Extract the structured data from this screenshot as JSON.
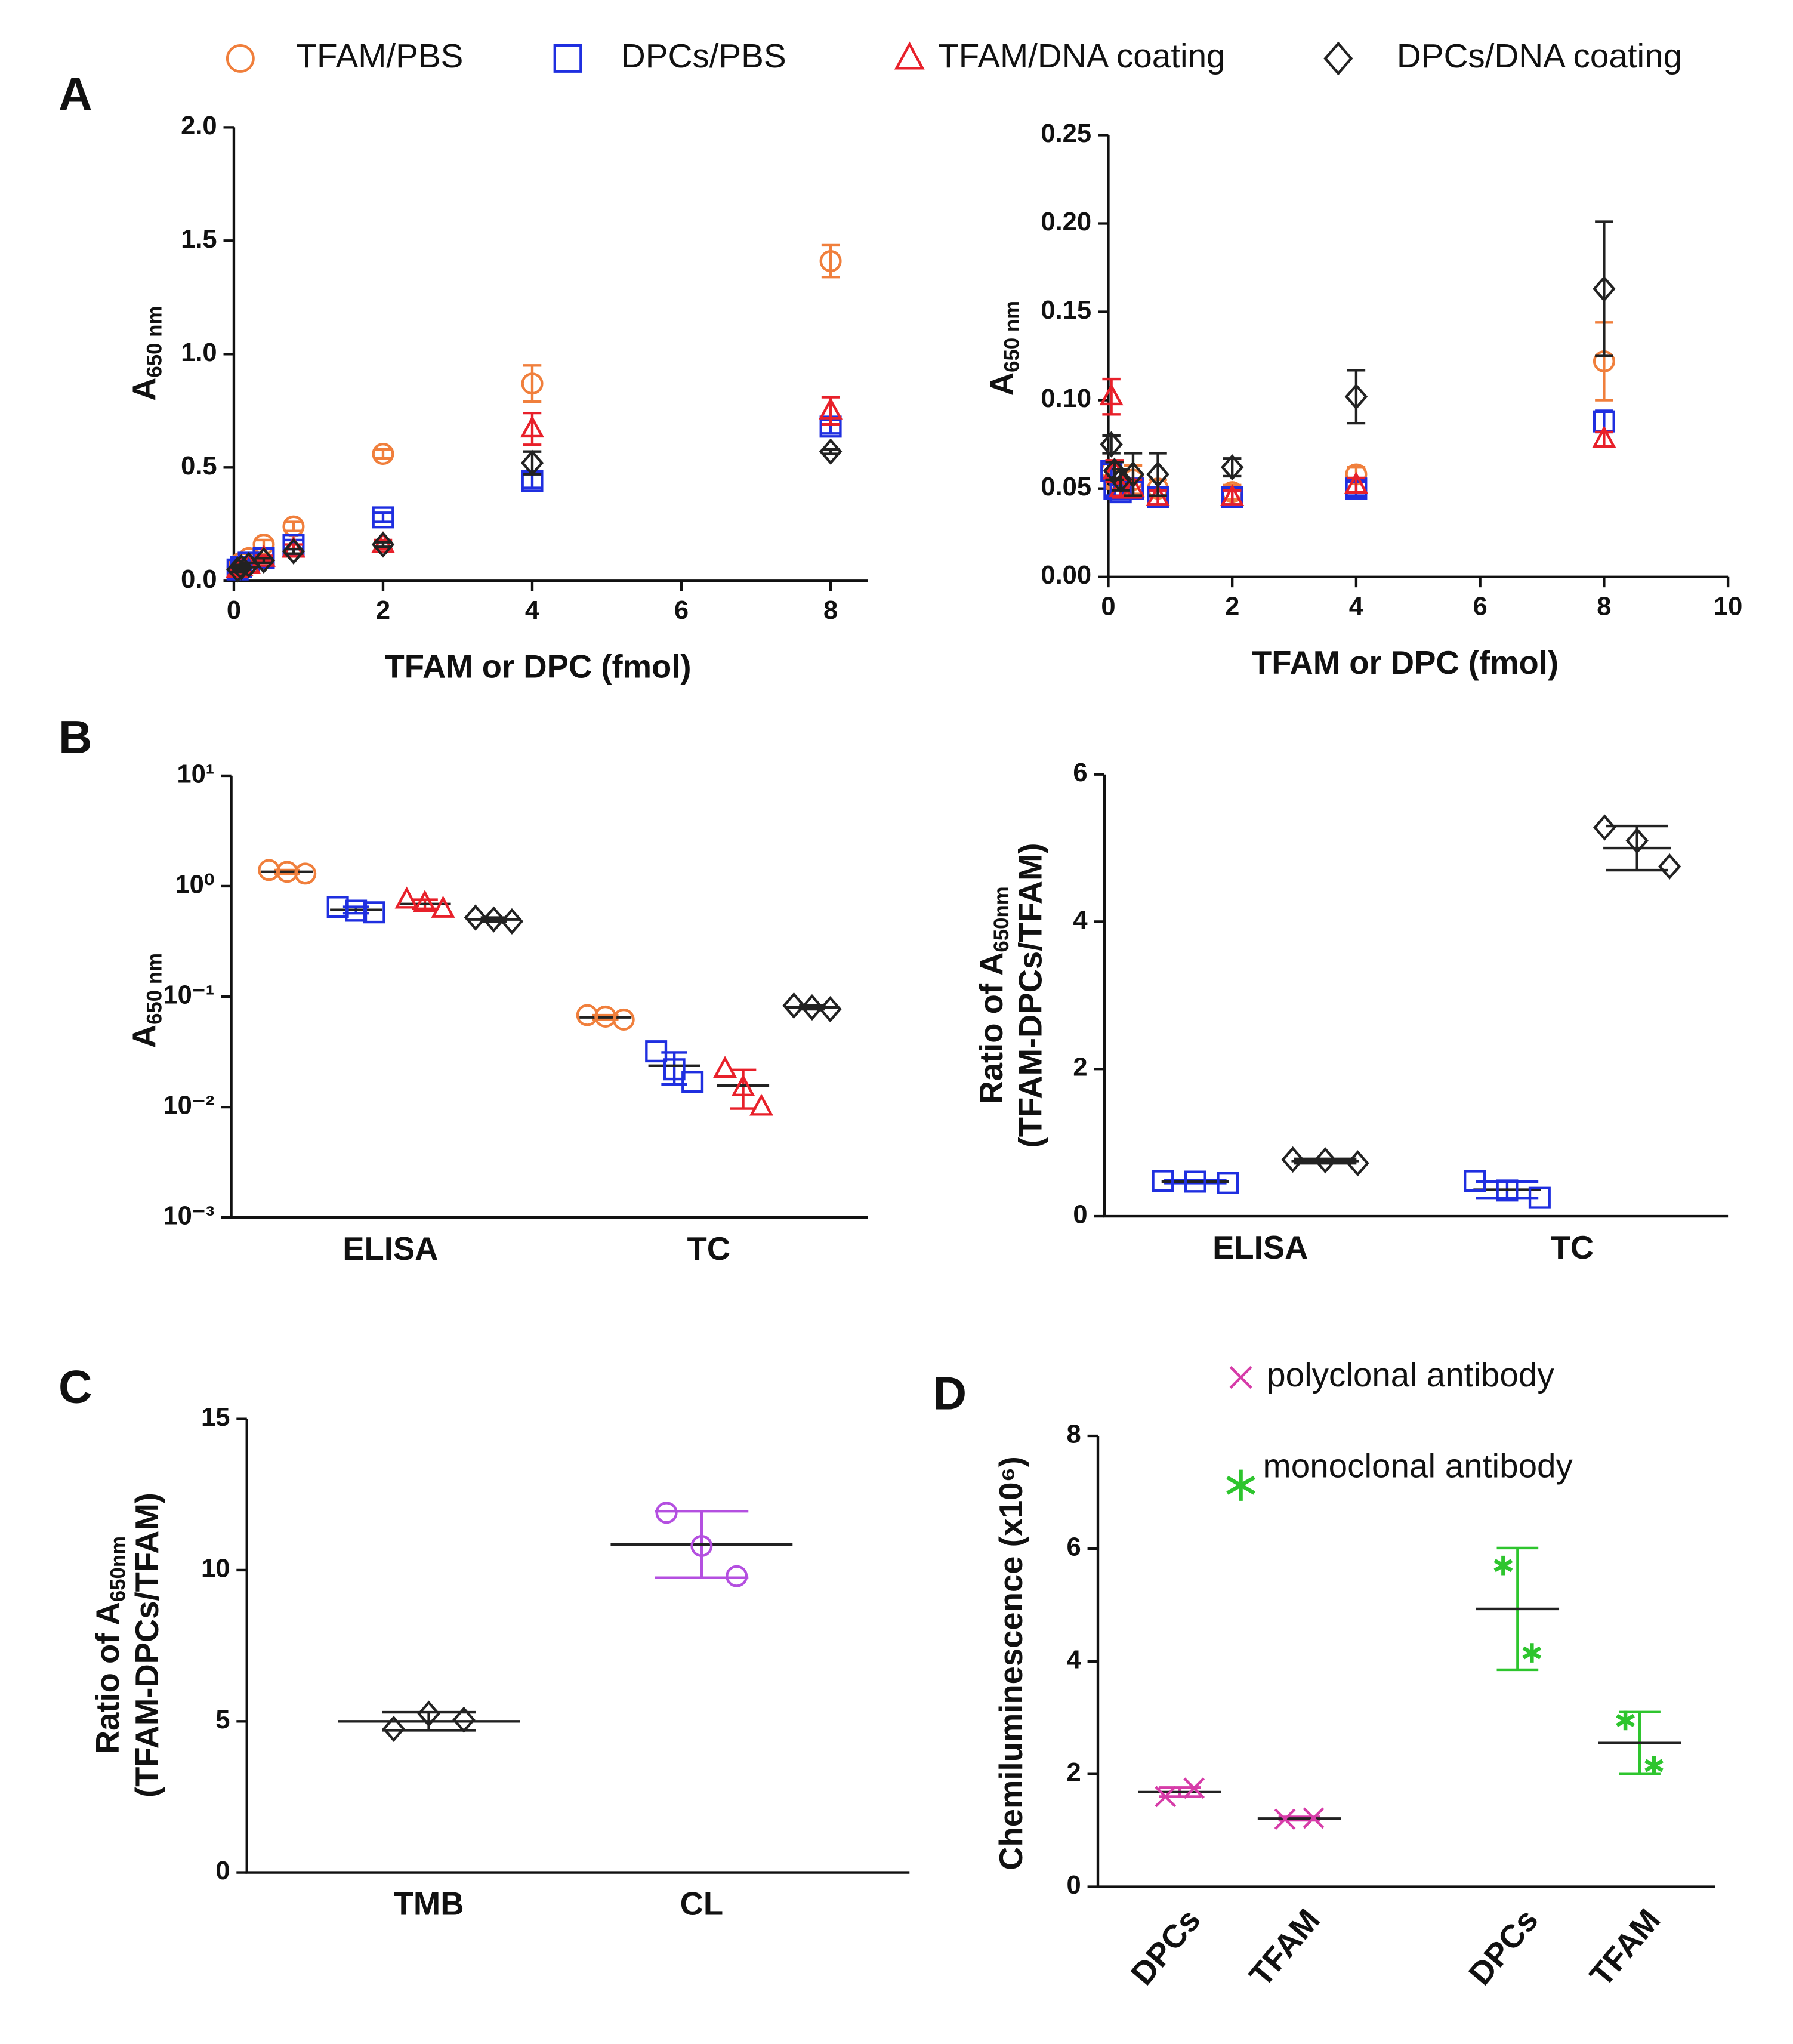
{
  "panels": [
    "A",
    "B",
    "C",
    "D"
  ],
  "chart_data": [
    {
      "type": "scatter",
      "x": [
        0.05,
        0.1,
        0.2,
        0.4,
        0.8,
        2,
        4,
        8
      ],
      "xlim": [
        0,
        8.5
      ],
      "xticks": [
        0,
        2,
        4,
        6,
        8
      ],
      "ylim": [
        0,
        2
      ],
      "yticks": [
        {
          "value": 0,
          "label": "0.0"
        },
        0.5,
        {
          "value": 1,
          "label": "1.0"
        },
        1.5,
        {
          "value": 2,
          "label": "2.0"
        }
      ],
      "xlabel": "TFAM or DPC (fmol)",
      "ylabel": {
        "text": "A",
        "sub": "650 nm"
      },
      "series": [
        {
          "name": "TFAM/PBS",
          "color": "#f07f3c",
          "marker": "circle",
          "values": [
            0.06,
            0.08,
            0.1,
            0.16,
            0.24,
            0.56,
            0.87,
            1.41
          ],
          "errors": [
            0.01,
            0.01,
            0.02,
            0.02,
            0.02,
            0.02,
            0.08,
            0.07
          ]
        },
        {
          "name": "DPCs/PBS",
          "color": "#1f2fe0",
          "marker": "square",
          "values": [
            0.05,
            0.06,
            0.08,
            0.1,
            0.16,
            0.28,
            0.44,
            0.68
          ],
          "errors": [
            0.01,
            0.01,
            0.01,
            0.01,
            0.02,
            0.02,
            0.03,
            0.03
          ]
        },
        {
          "name": "TFAM/DNA coating",
          "color": "#e8202a",
          "marker": "triangle",
          "values": [
            0.05,
            0.06,
            0.07,
            0.1,
            0.14,
            0.16,
            0.67,
            0.75
          ],
          "errors": [
            0.01,
            0.01,
            0.01,
            0.01,
            0.02,
            0.02,
            0.07,
            0.06
          ]
        },
        {
          "name": "DPCs/DNA coating",
          "color": "#222222",
          "marker": "diamond",
          "values": [
            0.05,
            0.06,
            0.07,
            0.09,
            0.13,
            0.16,
            0.52,
            0.57
          ],
          "errors": [
            0.01,
            0.01,
            0.01,
            0.01,
            0.01,
            0.01,
            0.05,
            0.01
          ]
        }
      ]
    },
    {
      "type": "scatter",
      "x": [
        0.05,
        0.1,
        0.2,
        0.4,
        0.8,
        2,
        4,
        8
      ],
      "xlim": [
        0,
        10
      ],
      "xticks": [
        0,
        2,
        4,
        6,
        8,
        10
      ],
      "ylim": [
        0,
        0.25
      ],
      "yticks": [
        {
          "value": 0,
          "label": "0.00"
        },
        0.05,
        {
          "value": 0.1,
          "label": "0.10"
        },
        0.15,
        {
          "value": 0.2,
          "label": "0.20"
        },
        0.25
      ],
      "xlabel": "TFAM or DPC (fmol)",
      "ylabel": {
        "text": "A",
        "sub": "650 nm"
      },
      "series": [
        {
          "color": "#f07f3c",
          "marker": "circle",
          "values": [
            0.06,
            0.055,
            0.05,
            0.055,
            0.05,
            0.048,
            0.058,
            0.122
          ],
          "errors": [
            0.005,
            0.005,
            0.005,
            0.008,
            0.005,
            0.004,
            0.004,
            0.022
          ]
        },
        {
          "color": "#1f2fe0",
          "marker": "square",
          "values": [
            0.06,
            0.05,
            0.048,
            0.05,
            0.045,
            0.045,
            0.05,
            0.088
          ],
          "errors": [
            0.004,
            0.004,
            0.004,
            0.004,
            0.004,
            0.004,
            0.004,
            0.006
          ]
        },
        {
          "color": "#e8202a",
          "marker": "triangle",
          "values": [
            0.102,
            0.06,
            0.05,
            0.05,
            0.045,
            0.045,
            0.052,
            0.078
          ],
          "errors": [
            0.01,
            0.006,
            0.005,
            0.005,
            0.004,
            0.004,
            0.004,
            0.004
          ]
        },
        {
          "color": "#222222",
          "marker": "diamond",
          "values": [
            0.075,
            0.06,
            0.055,
            0.058,
            0.058,
            0.062,
            0.102,
            0.163
          ],
          "errors": [
            0.005,
            0.005,
            0.006,
            0.012,
            0.012,
            0.005,
            0.015,
            0.038
          ]
        }
      ]
    },
    {
      "type": "dot",
      "yscale": "log",
      "categories": [
        "ELISA",
        "TC"
      ],
      "ylim": [
        0.001,
        10
      ],
      "yticks": [
        {
          "value": 10,
          "label": "10¹"
        },
        {
          "value": 1,
          "label": "10⁰"
        },
        {
          "value": 0.1,
          "label": "10⁻¹"
        },
        {
          "value": 0.01,
          "label": "10⁻²"
        },
        {
          "value": 0.001,
          "label": "10⁻³"
        }
      ],
      "ylabel": {
        "text": "A",
        "sub": "650 nm"
      },
      "series": [
        {
          "color": "#f07f3c",
          "marker": "circle",
          "points": [
            [
              1.4,
              1.35,
              1.3
            ],
            [
              0.068,
              0.066,
              0.062
            ]
          ],
          "means": [
            1.35,
            0.065
          ],
          "errors": [
            0.05,
            0.003
          ]
        },
        {
          "color": "#1f2fe0",
          "marker": "square",
          "points": [
            [
              0.65,
              0.6,
              0.58
            ],
            [
              0.032,
              0.022,
              0.017
            ]
          ],
          "means": [
            0.61,
            0.0237
          ],
          "errors": [
            0.04,
            0.0076
          ]
        },
        {
          "color": "#e8202a",
          "marker": "triangle",
          "points": [
            [
              0.75,
              0.7,
              0.62
            ],
            [
              0.022,
              0.015,
              0.01
            ]
          ],
          "means": [
            0.69,
            0.0157
          ],
          "errors": [
            0.065,
            0.006
          ]
        },
        {
          "color": "#222222",
          "marker": "diamond",
          "points": [
            [
              0.52,
              0.5,
              0.48
            ],
            [
              0.083,
              0.08,
              0.077
            ]
          ],
          "means": [
            0.5,
            0.08
          ],
          "errors": [
            0.02,
            0.003
          ]
        }
      ]
    },
    {
      "type": "dot",
      "categories": [
        "ELISA",
        "TC"
      ],
      "ylim": [
        0,
        6
      ],
      "yticks": [
        0,
        2,
        4,
        6
      ],
      "ylabel": {
        "text": "Ratio of A",
        "sub": "650nm",
        "line2": "(TFAM-DPCs/TFAM)"
      },
      "series": [
        {
          "color": "#1f2fe0",
          "marker": "square",
          "points": [
            [
              0.48,
              0.47,
              0.45
            ],
            [
              0.48,
              0.35,
              0.25
            ]
          ],
          "means": [
            0.47,
            0.36
          ],
          "errors": [
            0.02,
            0.11
          ]
        },
        {
          "color": "#222222",
          "marker": "diamond",
          "points": [
            [
              0.77,
              0.76,
              0.72
            ],
            [
              5.28,
              5.1,
              4.75
            ]
          ],
          "means": [
            0.75,
            5.0
          ],
          "errors": [
            0.03,
            0.3
          ]
        }
      ]
    },
    {
      "type": "dot",
      "categories": [
        "TMB",
        "CL"
      ],
      "ylim": [
        0,
        15
      ],
      "yticks": [
        0,
        5,
        10,
        15
      ],
      "ylabel": {
        "text": "Ratio of A",
        "sub": "650nm",
        "line2": "(TFAM-DPCs/TFAM)"
      },
      "series": [
        {
          "color": "#222222",
          "marker": "diamond",
          "points": [
            [
              4.75,
              5.25,
              5.05
            ],
            null
          ],
          "means": [
            5.0,
            null
          ],
          "errors": [
            0.3,
            null
          ]
        },
        {
          "color": "#b44fe0",
          "marker": "circle",
          "points": [
            null,
            [
              11.9,
              10.8,
              9.8
            ]
          ],
          "means": [
            null,
            10.85
          ],
          "errors": [
            null,
            1.1
          ]
        }
      ]
    },
    {
      "type": "dot",
      "categories": [
        "DPCs",
        "TFAM",
        "DPCs",
        "TFAM"
      ],
      "ylim": [
        0,
        8
      ],
      "yticks": [
        0,
        2,
        4,
        6,
        8
      ],
      "ylabel": "Chemiluminescence (x10⁶)",
      "series": [
        {
          "name": "polyclonal antibody",
          "color": "#d63ca8",
          "marker": "x",
          "points": [
            [
              1.6,
              1.75
            ],
            [
              1.2,
              1.22
            ],
            null,
            null
          ],
          "means": [
            1.68,
            1.21,
            null,
            null
          ],
          "errors": [
            0.08,
            0.03,
            null,
            null
          ]
        },
        {
          "name": "monoclonal antibody",
          "color": "#2ec52e",
          "marker": "asterisk",
          "points": [
            null,
            null,
            [
              5.7,
              4.15
            ],
            [
              2.95,
              2.15
            ]
          ],
          "means": [
            null,
            null,
            4.93,
            2.55
          ],
          "errors": [
            null,
            null,
            1.08,
            0.55
          ]
        }
      ]
    }
  ]
}
